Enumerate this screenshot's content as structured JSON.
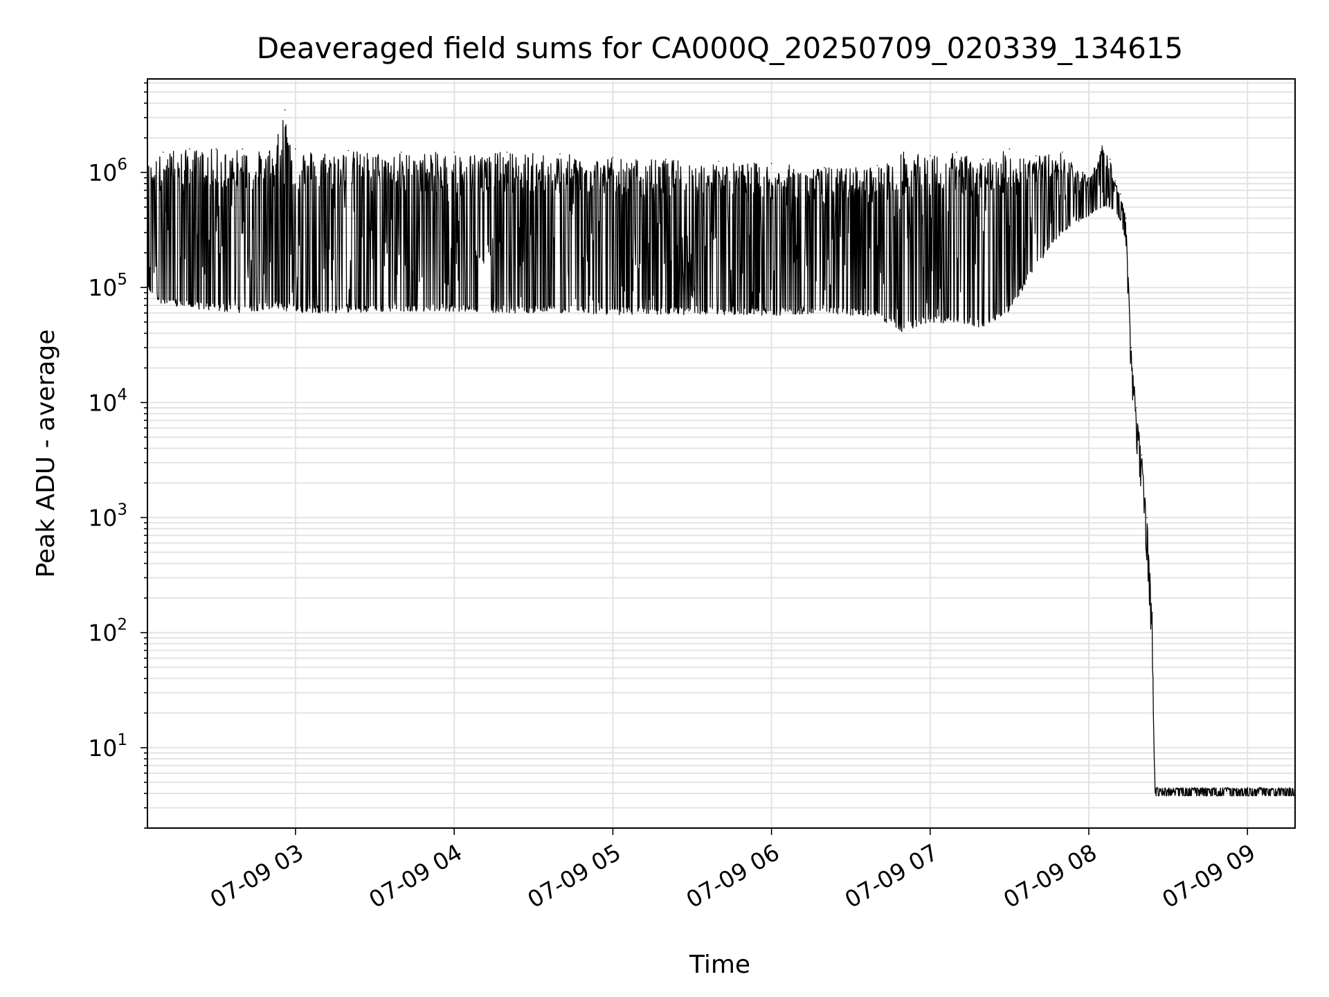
{
  "chart_data": {
    "type": "line",
    "title": "Deaveraged field sums for CA000Q_20250709_020339_134615",
    "xlabel": "Time",
    "ylabel": "Peak ADU - average",
    "yscale": "log",
    "ylim": [
      2,
      6500000.0
    ],
    "xlim": [
      "07-09 02:04",
      "07-09 09:18"
    ],
    "grid": true,
    "line_color": "#000000",
    "grid_color": "#e3e3e3",
    "x_ticks": [
      {
        "t": "07-09 03:00",
        "label": "07-09 03"
      },
      {
        "t": "07-09 04:00",
        "label": "07-09 04"
      },
      {
        "t": "07-09 05:00",
        "label": "07-09 05"
      },
      {
        "t": "07-09 06:00",
        "label": "07-09 06"
      },
      {
        "t": "07-09 07:00",
        "label": "07-09 07"
      },
      {
        "t": "07-09 08:00",
        "label": "07-09 08"
      },
      {
        "t": "07-09 09:00",
        "label": "07-09 09"
      }
    ],
    "y_ticks": [
      {
        "value": 10,
        "base": "10",
        "exp": "1"
      },
      {
        "value": 100,
        "base": "10",
        "exp": "2"
      },
      {
        "value": 1000,
        "base": "10",
        "exp": "3"
      },
      {
        "value": 10000,
        "base": "10",
        "exp": "4"
      },
      {
        "value": 100000,
        "base": "10",
        "exp": "5"
      },
      {
        "value": 1000000,
        "base": "10",
        "exp": "6"
      }
    ],
    "series": [
      {
        "x": [
          "07-09 02:04",
          "07-09 02:10",
          "07-09 02:20",
          "07-09 02:30",
          "07-09 02:40",
          "07-09 02:50",
          "07-09 02:56",
          "07-09 03:00",
          "07-09 03:20",
          "07-09 03:40",
          "07-09 04:00",
          "07-09 04:20",
          "07-09 04:40",
          "07-09 05:00",
          "07-09 05:20",
          "07-09 05:40",
          "07-09 06:00",
          "07-09 06:20",
          "07-09 06:40",
          "07-09 06:50",
          "07-09 07:00",
          "07-09 07:10",
          "07-09 07:20",
          "07-09 07:30",
          "07-09 07:40",
          "07-09 07:50",
          "07-09 08:00",
          "07-09 08:05",
          "07-09 08:08",
          "07-09 08:10",
          "07-09 08:12",
          "07-09 08:14",
          "07-09 08:16",
          "07-09 08:18",
          "07-09 08:20",
          "07-09 08:22",
          "07-09 08:24",
          "07-09 08:25",
          "07-09 08:26",
          "07-09 08:40",
          "07-09 09:00",
          "07-09 09:18"
        ],
        "y_high": [
          1200000,
          1500000,
          1600000,
          1600000,
          1600000,
          1500000,
          3500000,
          1600000,
          1550000,
          1500000,
          1500000,
          1500000,
          1450000,
          1350000,
          1300000,
          1250000,
          1200000,
          1100000,
          1150000,
          1500000,
          1400000,
          1500000,
          1300000,
          1600000,
          1400000,
          1500000,
          900000,
          1700000,
          1300000,
          850000,
          650000,
          400000,
          30000,
          9000,
          3500,
          1000,
          150,
          4.5,
          4.5,
          4.5,
          4.5,
          4.5
        ],
        "y_low": [
          95000,
          70000,
          65000,
          62000,
          60000,
          65000,
          62000,
          60000,
          60000,
          62000,
          62000,
          60000,
          60000,
          58000,
          58000,
          58000,
          57000,
          60000,
          55000,
          40000,
          50000,
          48000,
          45000,
          60000,
          150000,
          300000,
          420000,
          500000,
          500000,
          450000,
          380000,
          250000,
          15000,
          4000,
          1500,
          400,
          60,
          3.8,
          3.8,
          3.8,
          3.8,
          3.8
        ]
      }
    ]
  }
}
